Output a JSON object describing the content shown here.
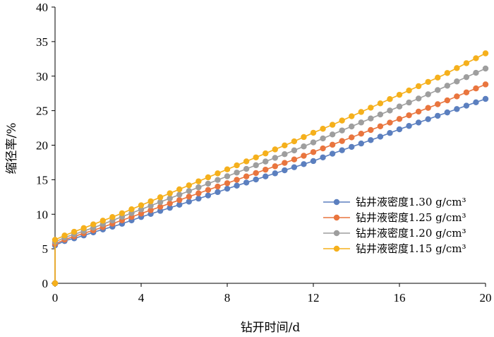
{
  "chart_data": {
    "type": "line",
    "title": "",
    "xlabel": "钻开时间/d",
    "ylabel": "缩径率/%",
    "xlim": [
      0,
      20
    ],
    "ylim": [
      0,
      40
    ],
    "xticks": [
      0,
      4,
      8,
      12,
      16,
      20
    ],
    "yticks": [
      0,
      5,
      10,
      15,
      20,
      25,
      30,
      35,
      40
    ],
    "grid": false,
    "legend_position": "right",
    "series": [
      {
        "name": "钻井液密度1.30 g/cm³",
        "color": "#5b7fbf",
        "x": [
          0,
          0,
          0.5,
          1,
          2,
          3,
          4,
          5,
          6,
          7,
          8,
          9,
          10,
          11,
          12,
          13,
          14,
          15,
          16,
          17,
          18,
          19,
          20
        ],
        "y": [
          0,
          5.5,
          6.2,
          6.6,
          7.6,
          8.5,
          9.6,
          10.6,
          11.6,
          12.6,
          13.7,
          14.7,
          15.7,
          16.7,
          17.7,
          18.9,
          20,
          21.1,
          22.3,
          23.4,
          24.5,
          25.6,
          26.7
        ]
      },
      {
        "name": "钻井液密度1.25 g/cm³",
        "color": "#e9753e",
        "x": [
          0,
          0,
          0.5,
          1,
          2,
          3,
          4,
          5,
          6,
          7,
          8,
          9,
          10,
          11,
          12,
          13,
          14,
          15,
          16,
          17,
          18,
          19,
          20
        ],
        "y": [
          0,
          5.7,
          6.4,
          6.9,
          7.9,
          9.0,
          10.1,
          11.2,
          12.3,
          13.4,
          14.5,
          15.6,
          16.7,
          17.8,
          19.0,
          20.2,
          21.4,
          22.6,
          23.8,
          25.0,
          26.2,
          27.5,
          28.8
        ]
      },
      {
        "name": "钻井液密度1.20 g/cm³",
        "color": "#9e9e9e",
        "x": [
          0,
          0,
          0.5,
          1,
          2,
          3,
          4,
          5,
          6,
          7,
          8,
          9,
          10,
          11,
          12,
          13,
          14,
          15,
          16,
          17,
          18,
          19,
          20
        ],
        "y": [
          0,
          6.0,
          6.7,
          7.2,
          8.3,
          9.5,
          10.7,
          11.9,
          13.1,
          14.3,
          15.5,
          16.7,
          17.9,
          19.1,
          20.4,
          21.7,
          23.0,
          24.3,
          25.6,
          26.9,
          28.3,
          29.7,
          31.1
        ]
      },
      {
        "name": "钻井液密度1.15 g/cm³",
        "color": "#f5b01c",
        "x": [
          0,
          0,
          0.5,
          1,
          2,
          3,
          4,
          5,
          6,
          7,
          8,
          9,
          10,
          11,
          12,
          13,
          14,
          15,
          16,
          17,
          18,
          19,
          20
        ],
        "y": [
          0,
          6.3,
          7.0,
          7.6,
          8.8,
          10.0,
          11.3,
          12.6,
          13.9,
          15.2,
          16.5,
          17.8,
          19.1,
          20.4,
          21.8,
          23.1,
          24.5,
          25.9,
          27.3,
          28.7,
          30.1,
          31.7,
          33.3
        ]
      }
    ]
  }
}
